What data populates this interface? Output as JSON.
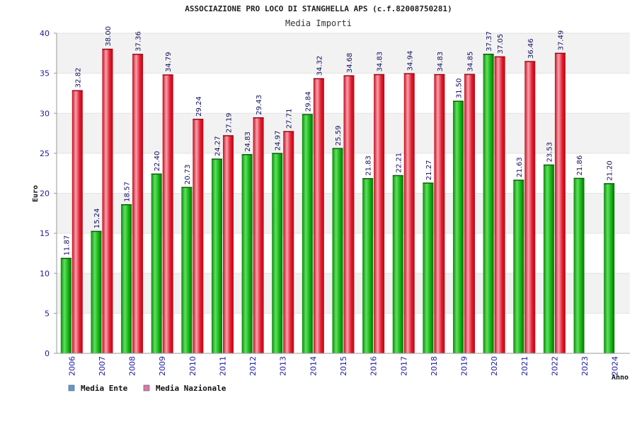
{
  "chart_data": {
    "type": "bar",
    "title": "ASSOCIAZIONE PRO LOCO DI STANGHELLA APS (c.f.82008750281)",
    "subtitle": "Media Importi",
    "xlabel": "Anno",
    "ylabel": "Euro",
    "ylim": [
      0,
      40
    ],
    "yticks": [
      "0",
      "5",
      "10",
      "15",
      "20",
      "25",
      "30",
      "35",
      "40"
    ],
    "grid": true,
    "legend_position": "bottom-left",
    "categories": [
      "2006",
      "2007",
      "2008",
      "2009",
      "2010",
      "2011",
      "2012",
      "2013",
      "2014",
      "2015",
      "2016",
      "2017",
      "2018",
      "2019",
      "2020",
      "2021",
      "2022",
      "2023",
      "2024"
    ],
    "series": [
      {
        "name": "Media Ente",
        "color": "#13b313",
        "legend_color": "#5b9bd5",
        "values": [
          11.87,
          15.24,
          18.57,
          22.4,
          20.73,
          24.27,
          24.83,
          24.97,
          29.84,
          25.59,
          21.83,
          22.21,
          21.27,
          31.5,
          37.37,
          21.63,
          23.53,
          21.86,
          21.2
        ],
        "labels": [
          "11.87",
          "15.24",
          "18.57",
          "22.40",
          "20.73",
          "24.27",
          "24.83",
          "24.97",
          "29.84",
          "25.59",
          "21.83",
          "22.21",
          "21.27",
          "31.50",
          "37.37",
          "21.63",
          "23.53",
          "21.86",
          "21.20"
        ]
      },
      {
        "name": "Media Nazionale",
        "color": "#e81c2c",
        "legend_color": "#d97aa8",
        "values": [
          32.82,
          38.0,
          37.36,
          34.79,
          29.24,
          27.19,
          29.43,
          27.71,
          34.32,
          34.68,
          34.83,
          34.94,
          34.83,
          34.85,
          37.05,
          36.46,
          37.49,
          null,
          null
        ],
        "labels": [
          "32.82",
          "38.00",
          "37.36",
          "34.79",
          "29.24",
          "27.19",
          "29.43",
          "27.71",
          "34.32",
          "34.68",
          "34.83",
          "34.94",
          "34.83",
          "34.85",
          "37.05",
          "36.46",
          "37.49",
          "",
          ""
        ]
      }
    ]
  }
}
